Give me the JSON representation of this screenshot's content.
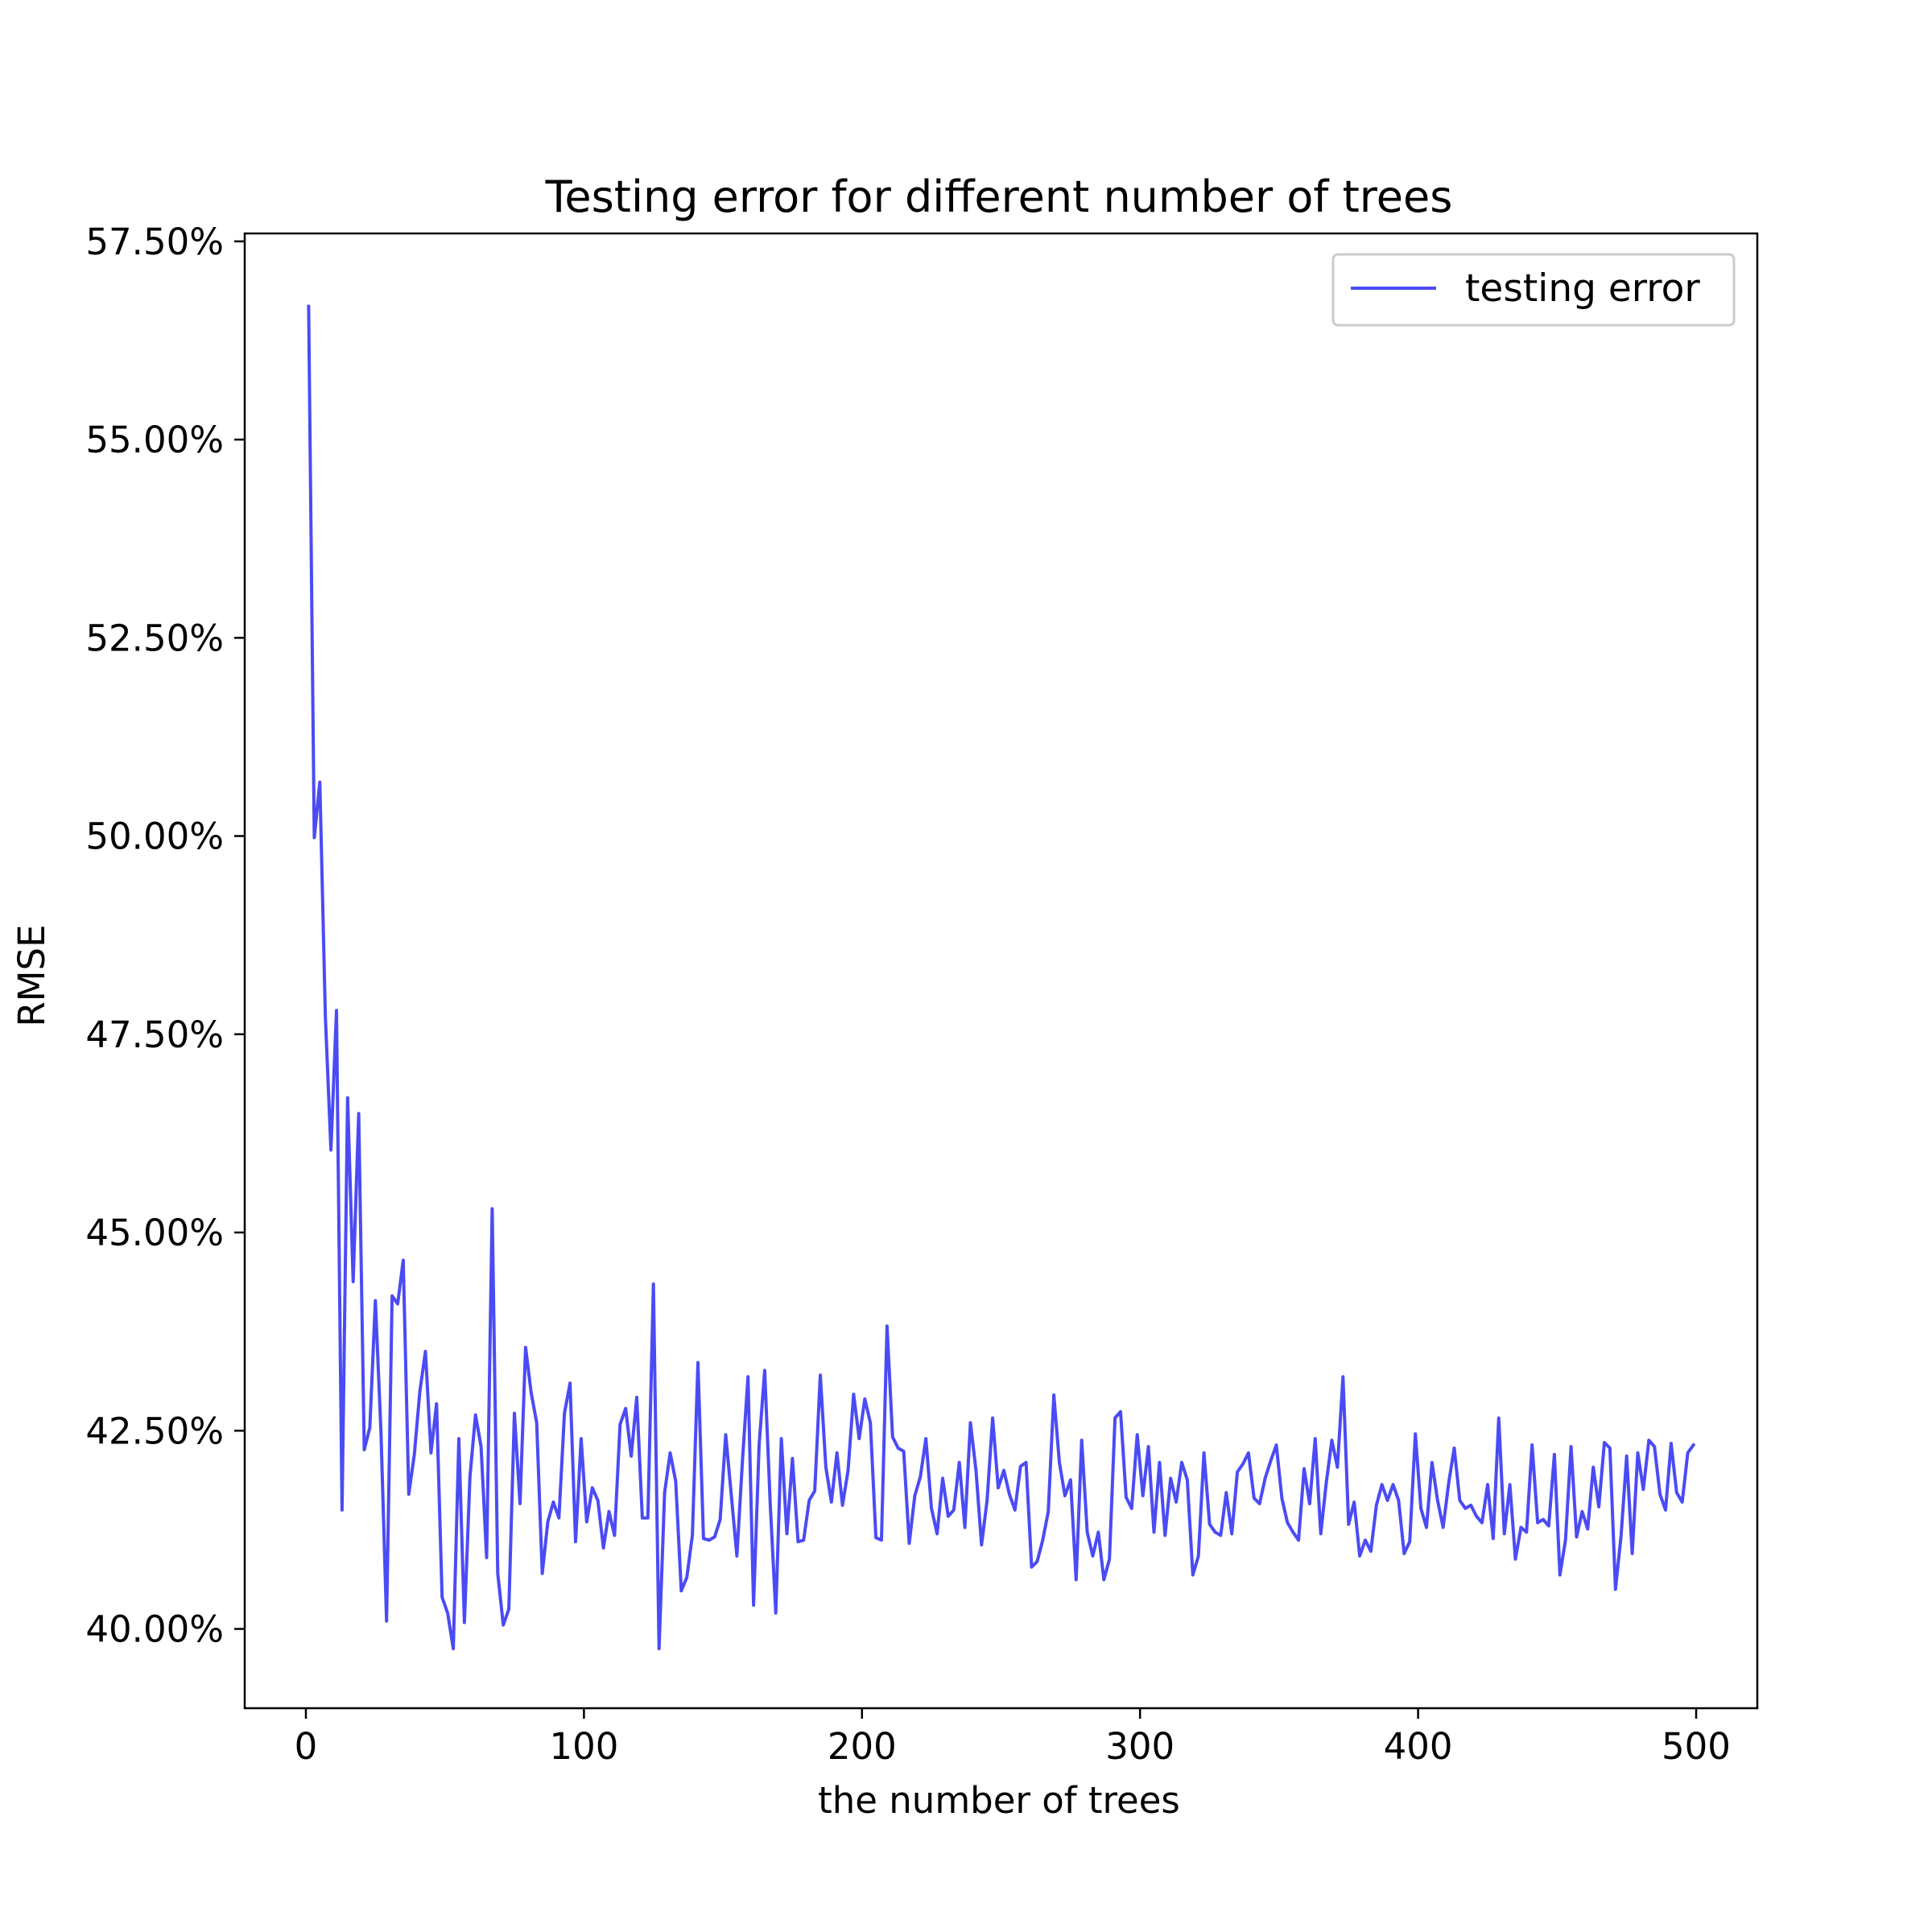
{
  "chart_data": {
    "type": "line",
    "title": "Testing error for different number of trees",
    "xlabel": "the number of trees",
    "ylabel": "RMSE",
    "xlim": [
      -22,
      522
    ],
    "ylim": [
      39.0,
      57.6
    ],
    "x_ticks": [
      0,
      100,
      200,
      300,
      400,
      500
    ],
    "x_tick_labels": [
      "0",
      "100",
      "200",
      "300",
      "400",
      "500"
    ],
    "y_ticks": [
      40.0,
      42.5,
      45.0,
      47.5,
      50.0,
      52.5,
      55.0,
      57.5
    ],
    "y_tick_labels": [
      "40.00%",
      "42.50%",
      "45.00%",
      "47.50%",
      "50.00%",
      "52.50%",
      "55.00%",
      "57.50%"
    ],
    "grid": false,
    "legend": {
      "position": "top-right",
      "entries": [
        "testing error"
      ]
    },
    "series": [
      {
        "name": "testing error",
        "color": "#4b4bf5",
        "x": [
          1,
          3,
          5,
          7,
          9,
          11,
          13,
          15,
          17,
          19,
          21,
          23,
          25,
          27,
          29,
          31,
          33,
          35,
          37,
          39,
          41,
          43,
          45,
          47,
          49,
          51,
          53,
          55,
          57,
          59,
          61,
          63,
          65,
          67,
          69,
          71,
          73,
          75,
          77,
          79,
          81,
          83,
          85,
          87,
          89,
          91,
          93,
          95,
          97,
          99,
          101,
          103,
          105,
          107,
          109,
          111,
          113,
          115,
          117,
          119,
          121,
          123,
          125,
          127,
          129,
          131,
          133,
          135,
          137,
          139,
          141,
          143,
          145,
          147,
          149,
          151,
          153,
          155,
          157,
          159,
          161,
          163,
          165,
          167,
          169,
          171,
          173,
          175,
          177,
          179,
          181,
          183,
          185,
          187,
          189,
          191,
          193,
          195,
          197,
          199,
          201,
          203,
          205,
          207,
          209,
          211,
          213,
          215,
          217,
          219,
          221,
          223,
          225,
          227,
          229,
          231,
          233,
          235,
          237,
          239,
          241,
          243,
          245,
          247,
          249,
          251,
          253,
          255,
          257,
          259,
          261,
          263,
          265,
          267,
          269,
          271,
          273,
          275,
          277,
          279,
          281,
          283,
          285,
          287,
          289,
          291,
          293,
          295,
          297,
          299,
          301,
          303,
          305,
          307,
          309,
          311,
          313,
          315,
          317,
          319,
          321,
          323,
          325,
          327,
          329,
          331,
          333,
          335,
          337,
          339,
          341,
          343,
          345,
          347,
          349,
          351,
          353,
          355,
          357,
          359,
          361,
          363,
          365,
          367,
          369,
          371,
          373,
          375,
          377,
          379,
          381,
          383,
          385,
          387,
          389,
          391,
          393,
          395,
          397,
          399,
          401,
          403,
          405,
          407,
          409,
          411,
          413,
          415,
          417,
          419,
          421,
          423,
          425,
          427,
          429,
          431,
          433,
          435,
          437,
          439,
          441,
          443,
          445,
          447,
          449,
          451,
          453,
          455,
          457,
          459,
          461,
          463,
          465,
          467,
          469,
          471,
          473,
          475,
          477,
          479,
          481,
          483,
          485,
          487,
          489,
          491,
          493,
          495,
          497,
          499
        ],
        "values": [
          56.68,
          49.98,
          50.68,
          47.72,
          46.04,
          47.8,
          41.5,
          46.7,
          44.38,
          46.5,
          42.26,
          42.54,
          44.14,
          42.5,
          40.1,
          44.2,
          44.1,
          44.65,
          41.7,
          42.2,
          43.0,
          43.5,
          42.22,
          42.84,
          40.4,
          40.2,
          39.75,
          42.4,
          40.08,
          41.92,
          42.7,
          42.3,
          40.9,
          45.3,
          40.7,
          40.05,
          40.25,
          42.72,
          41.58,
          43.55,
          42.98,
          42.6,
          40.7,
          41.35,
          41.6,
          41.4,
          42.72,
          43.1,
          41.1,
          42.4,
          41.35,
          41.78,
          41.62,
          41.02,
          41.48,
          41.18,
          42.58,
          42.78,
          42.18,
          42.92,
          41.4,
          41.4,
          44.35,
          39.75,
          41.72,
          42.22,
          41.86,
          40.48,
          40.65,
          41.18,
          43.36,
          41.14,
          41.12,
          41.16,
          41.38,
          42.45,
          41.68,
          40.92,
          42.12,
          43.18,
          40.3,
          42.32,
          43.26,
          41.58,
          40.2,
          42.4,
          41.2,
          42.15,
          41.1,
          41.12,
          41.62,
          41.74,
          43.2,
          42.04,
          41.6,
          42.22,
          41.56,
          42.0,
          42.96,
          42.4,
          42.9,
          42.6,
          41.15,
          41.12,
          43.82,
          42.42,
          42.28,
          42.24,
          41.08,
          41.68,
          41.92,
          42.4,
          41.52,
          41.2,
          41.9,
          41.42,
          41.5,
          42.1,
          41.28,
          42.6,
          42.0,
          41.06,
          41.62,
          42.66,
          41.78,
          42.0,
          41.7,
          41.5,
          42.05,
          42.1,
          40.78,
          40.85,
          41.12,
          41.48,
          42.95,
          42.1,
          41.68,
          41.88,
          40.62,
          42.38,
          41.22,
          40.92,
          41.22,
          40.62,
          40.88,
          42.66,
          42.74,
          41.66,
          41.52,
          42.45,
          41.68,
          42.3,
          41.22,
          42.1,
          41.18,
          41.9,
          41.6,
          42.1,
          41.88,
          40.68,
          40.92,
          42.22,
          41.32,
          41.22,
          41.18,
          41.72,
          41.2,
          41.98,
          42.08,
          42.22,
          41.65,
          41.58,
          41.9,
          42.12,
          42.32,
          41.65,
          41.34,
          41.22,
          41.12,
          42.02,
          41.58,
          42.4,
          41.2,
          41.85,
          42.38,
          42.04,
          43.18,
          41.32,
          41.6,
          40.92,
          41.12,
          40.98,
          41.56,
          41.82,
          41.62,
          41.82,
          41.62,
          40.95,
          41.1,
          42.46,
          41.52,
          41.28,
          42.1,
          41.62,
          41.28,
          41.84,
          42.28,
          41.62,
          41.52,
          41.56,
          41.42,
          41.34,
          41.82,
          41.14,
          42.66,
          41.2,
          41.82,
          40.88,
          41.28,
          41.22,
          42.32,
          41.34,
          41.38,
          41.3,
          42.2,
          40.68,
          41.12,
          42.3,
          41.16,
          41.48,
          41.26,
          42.04,
          41.54,
          42.35,
          42.28,
          40.5,
          41.18,
          42.18,
          40.95,
          42.22,
          41.76,
          42.38,
          42.3,
          41.7,
          41.5,
          42.34,
          41.72,
          41.6,
          42.22,
          42.32
        ]
      }
    ]
  }
}
